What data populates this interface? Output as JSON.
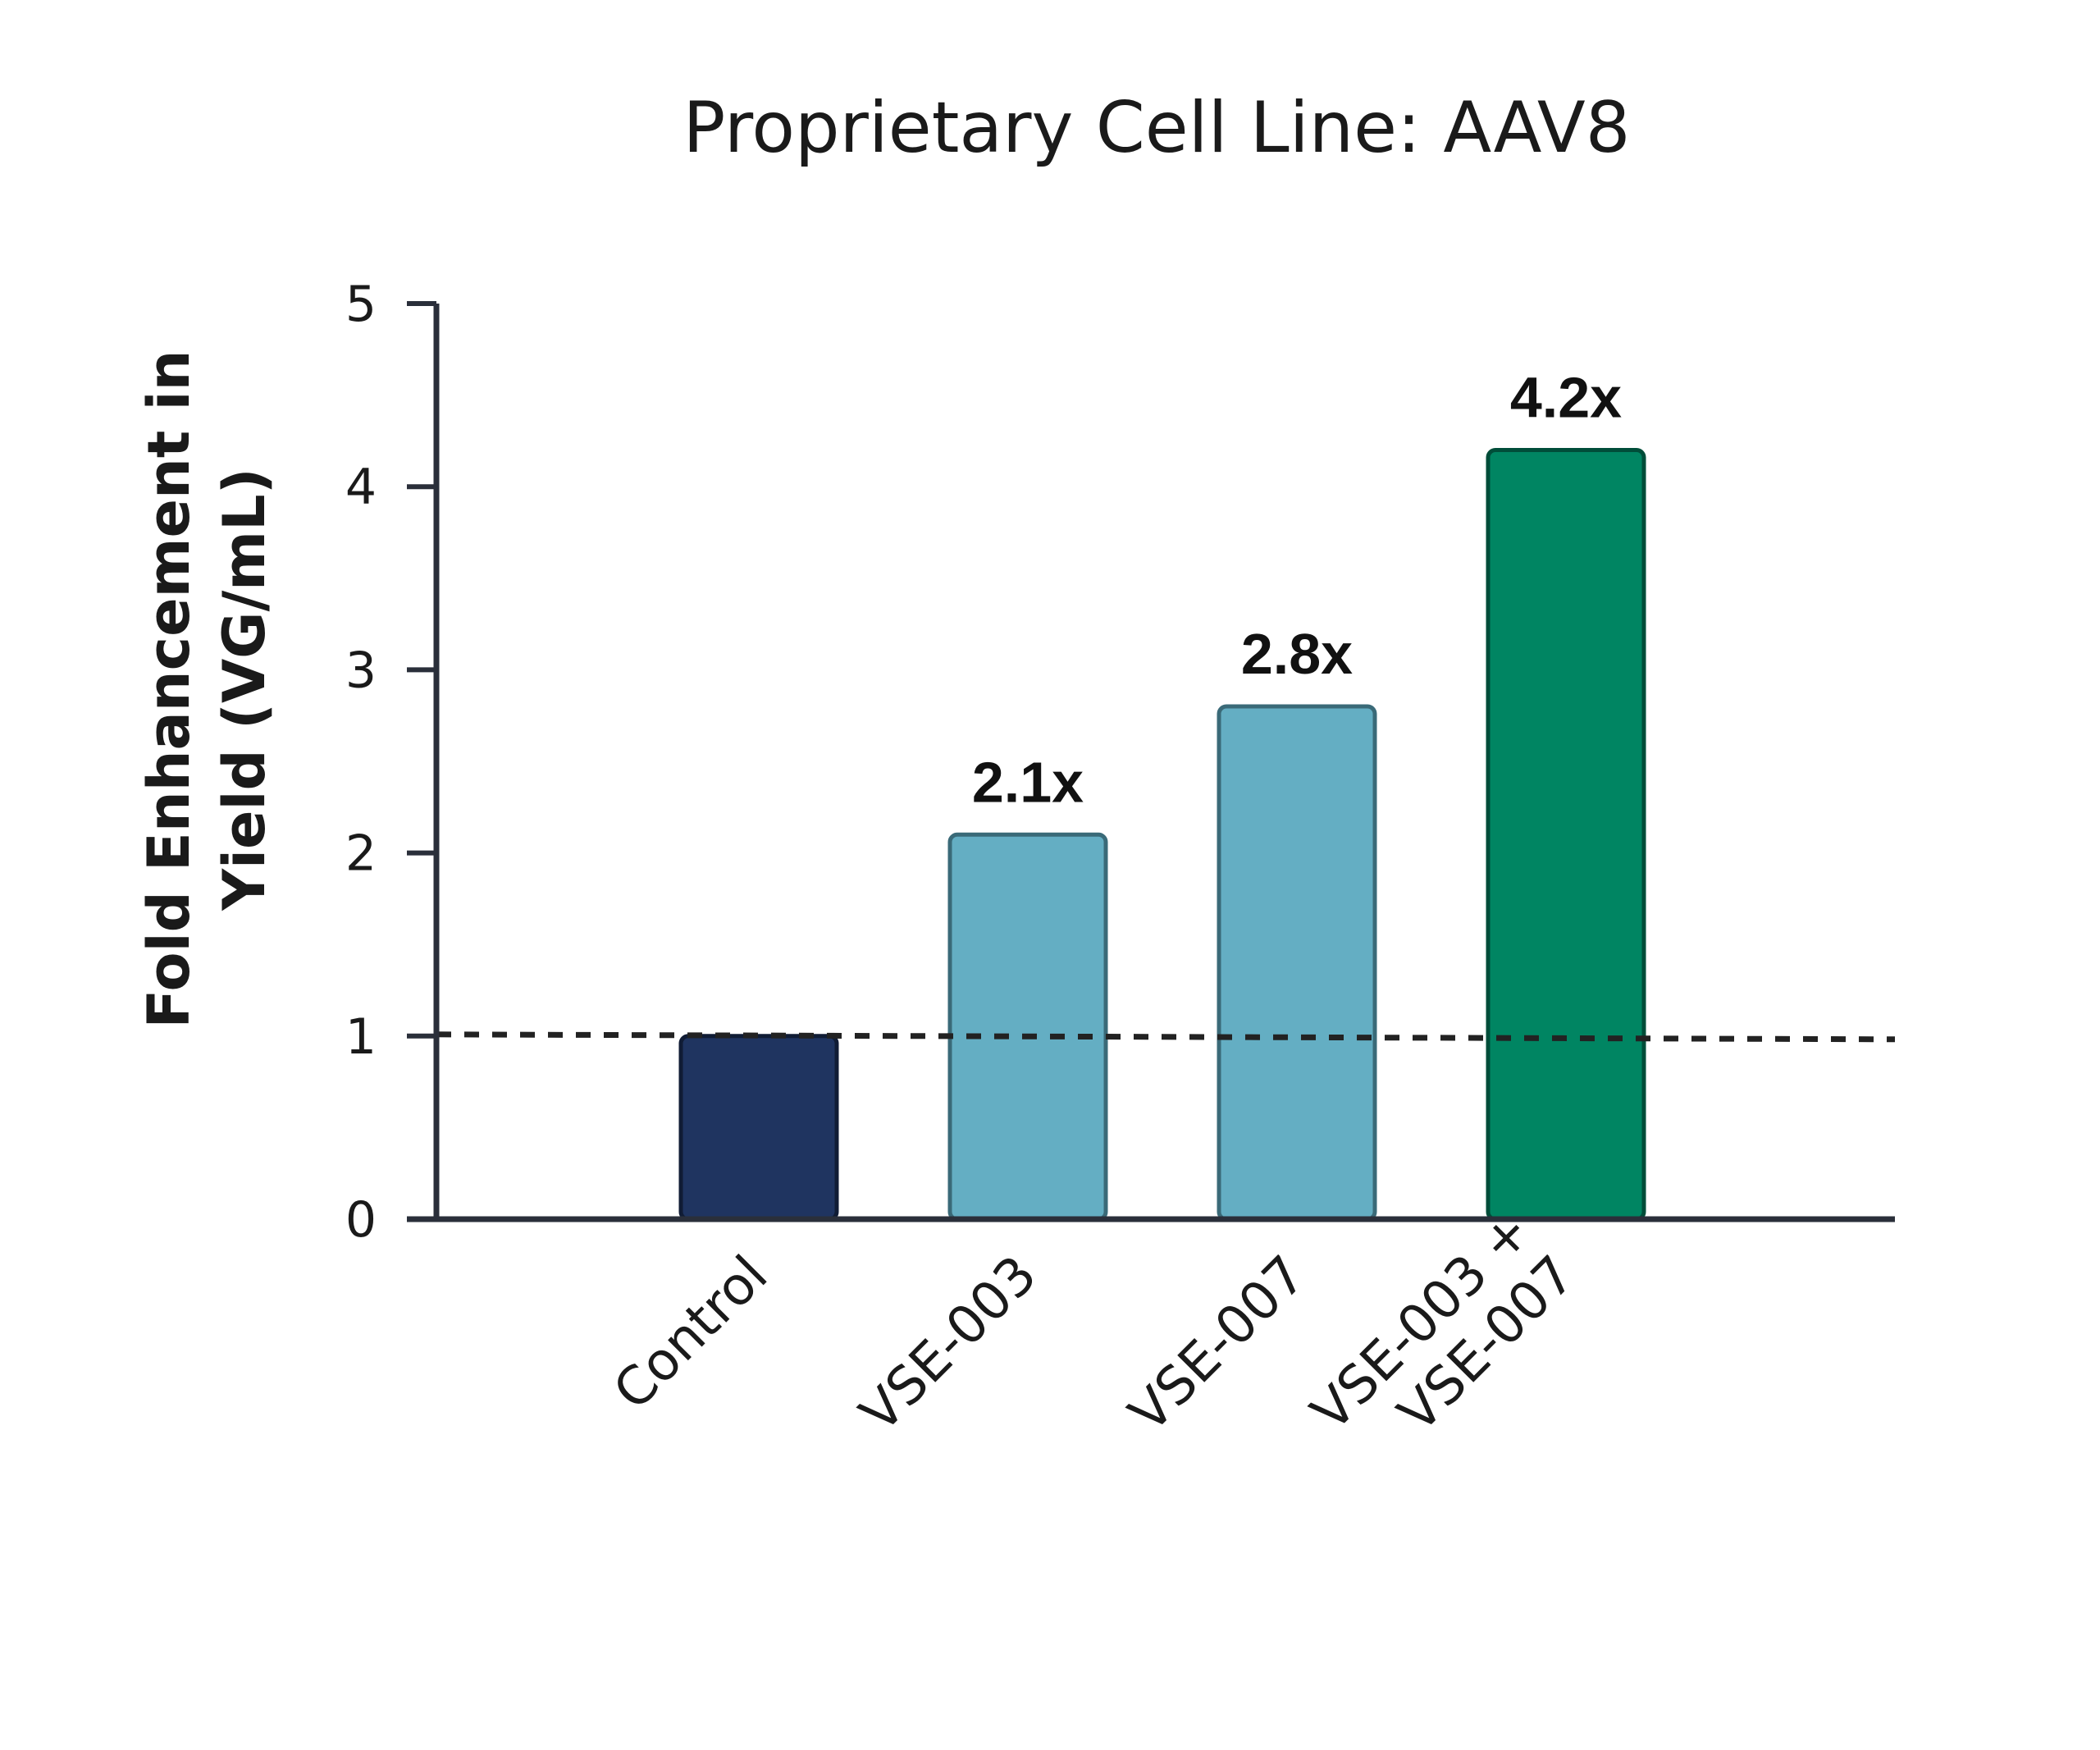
{
  "chart_data": {
    "type": "bar",
    "title": "Proprietary Cell Line: AAV8",
    "xlabel": "",
    "ylabel_lines": [
      "Fold Enhancement in",
      "Yield (VG/mL)"
    ],
    "ylim": [
      0,
      5
    ],
    "yticks": [
      "0",
      "1",
      "2",
      "3",
      "4",
      "5"
    ],
    "categories": [
      [
        "Control"
      ],
      [
        "VSE-003"
      ],
      [
        "VSE-007"
      ],
      [
        "VSE-003 +",
        "VSE-007"
      ]
    ],
    "values": [
      1.0,
      2.1,
      2.8,
      4.2
    ],
    "data_labels": [
      "",
      "2.1x",
      "2.8x",
      "4.2x"
    ],
    "bar_colors": [
      "#1f3460",
      "#64aec3",
      "#64aec3",
      "#008562"
    ],
    "bar_edge_colors": [
      "#101c35",
      "#3a6a78",
      "#3a6a78",
      "#004d39"
    ],
    "reference_line": {
      "y": 1,
      "style": "dotted",
      "color": "#222222"
    },
    "grid": false,
    "legend": "none"
  }
}
